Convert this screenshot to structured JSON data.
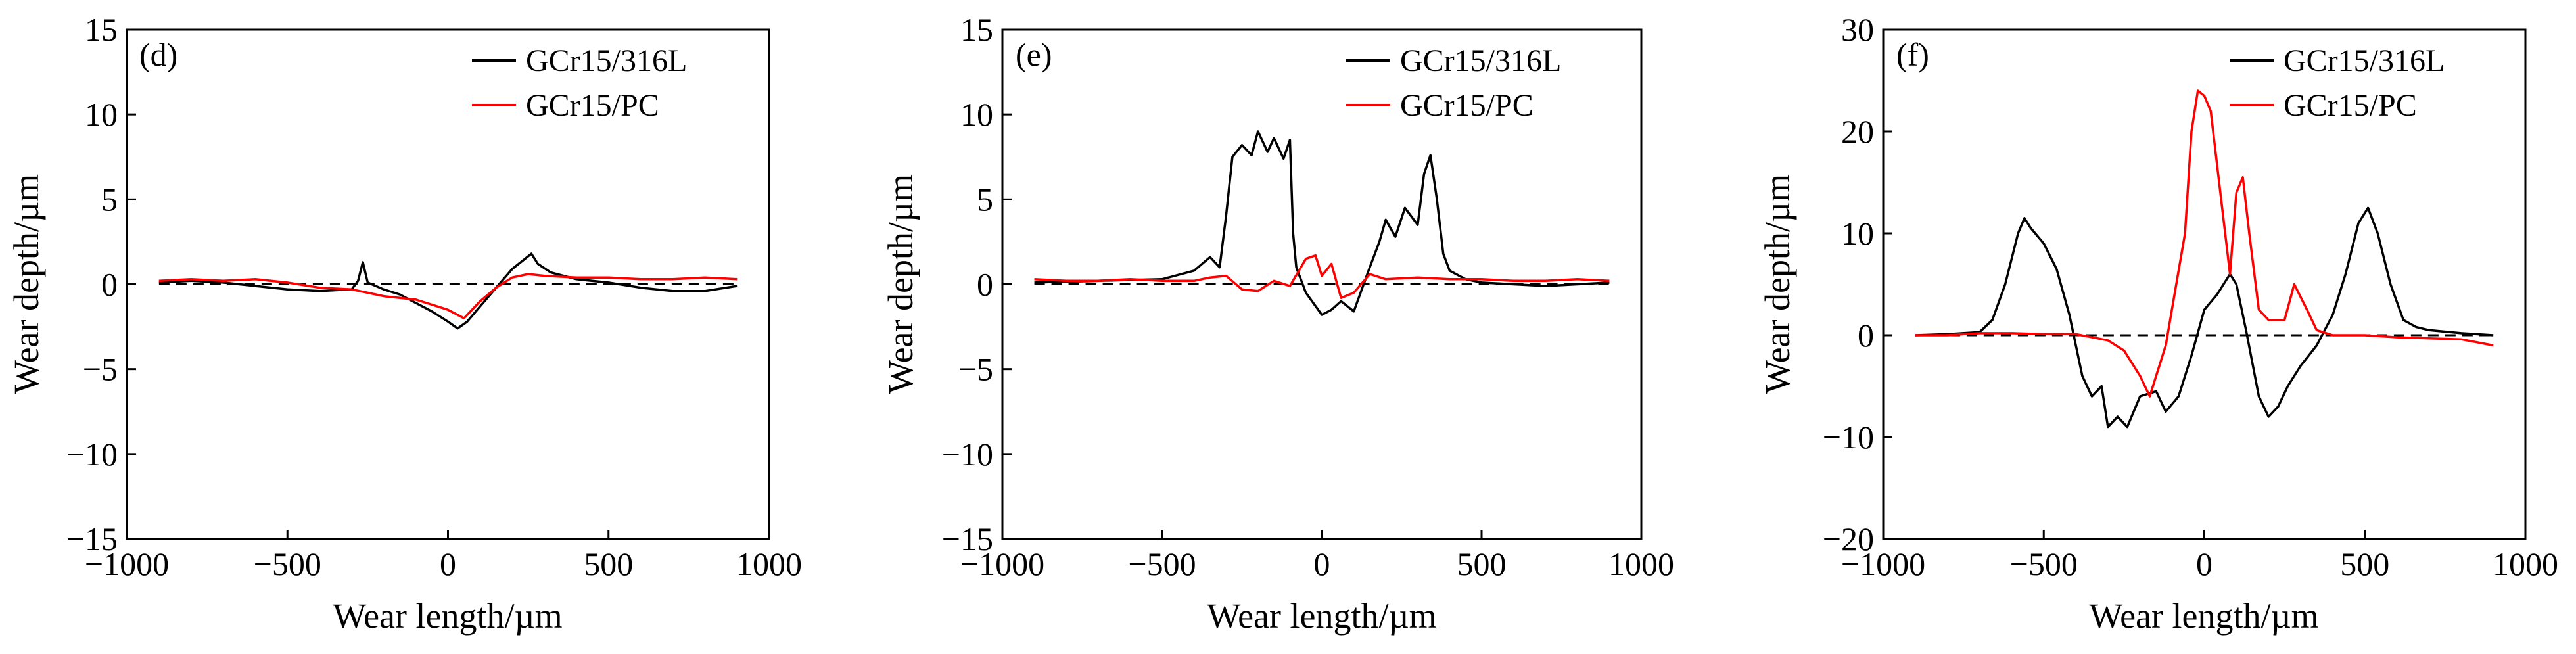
{
  "colors": {
    "series1": "#000000",
    "series2": "#ff0000",
    "axis": "#000000",
    "zero_line": "#000000"
  },
  "chart_data": [
    {
      "type": "line",
      "panel": "(d)",
      "xlabel": "Wear length/µm",
      "ylabel": "Wear depth/µm",
      "xlim": [
        -1000,
        1000
      ],
      "ylim": [
        -15,
        15
      ],
      "xticks": [
        -1000,
        -500,
        0,
        500,
        1000
      ],
      "yticks": [
        -15,
        -10,
        -5,
        0,
        5,
        10,
        15
      ],
      "xtick_labels": [
        "−1000",
        "−500",
        "0",
        "500",
        "1000"
      ],
      "ytick_labels": [
        "−15",
        "−10",
        "−5",
        "0",
        "5",
        "10",
        "15"
      ],
      "legend_position": "top-right",
      "zero_reference": "dashed line at 0",
      "series": [
        {
          "name": "GCr15/316L",
          "color": "#000000",
          "x": [
            -900,
            -800,
            -700,
            -600,
            -500,
            -400,
            -300,
            -280,
            -265,
            -250,
            -200,
            -150,
            -100,
            -50,
            0,
            30,
            60,
            100,
            150,
            200,
            240,
            260,
            280,
            320,
            400,
            500,
            600,
            700,
            800,
            900
          ],
          "y": [
            0.1,
            0.2,
            0.1,
            -0.1,
            -0.3,
            -0.4,
            -0.3,
            0.2,
            1.3,
            0.1,
            -0.3,
            -0.6,
            -1.1,
            -1.6,
            -2.2,
            -2.6,
            -2.2,
            -1.3,
            -0.2,
            0.9,
            1.5,
            1.8,
            1.2,
            0.7,
            0.3,
            0.1,
            -0.2,
            -0.4,
            -0.4,
            -0.1
          ]
        },
        {
          "name": "GCr15/PC",
          "color": "#ff0000",
          "x": [
            -900,
            -800,
            -700,
            -600,
            -500,
            -400,
            -300,
            -250,
            -200,
            -150,
            -100,
            -50,
            0,
            50,
            100,
            150,
            200,
            250,
            300,
            400,
            500,
            600,
            700,
            800,
            900
          ],
          "y": [
            0.2,
            0.3,
            0.2,
            0.3,
            0.1,
            -0.2,
            -0.3,
            -0.5,
            -0.7,
            -0.8,
            -0.9,
            -1.2,
            -1.5,
            -2.0,
            -1.0,
            -0.2,
            0.4,
            0.6,
            0.5,
            0.4,
            0.4,
            0.3,
            0.3,
            0.4,
            0.3
          ]
        }
      ]
    },
    {
      "type": "line",
      "panel": "(e)",
      "xlabel": "Wear length/µm",
      "ylabel": "Wear depth/µm",
      "xlim": [
        -1000,
        1000
      ],
      "ylim": [
        -15,
        15
      ],
      "xticks": [
        -1000,
        -500,
        0,
        500,
        1000
      ],
      "yticks": [
        -15,
        -10,
        -5,
        0,
        5,
        10,
        15
      ],
      "xtick_labels": [
        "−1000",
        "−500",
        "0",
        "500",
        "1000"
      ],
      "ytick_labels": [
        "−15",
        "−10",
        "−5",
        "0",
        "5",
        "10",
        "15"
      ],
      "legend_position": "top-right",
      "zero_reference": "dashed line at 0",
      "series": [
        {
          "name": "GCr15/316L",
          "color": "#000000",
          "x": [
            -900,
            -700,
            -500,
            -400,
            -350,
            -320,
            -300,
            -280,
            -250,
            -220,
            -200,
            -170,
            -150,
            -120,
            -100,
            -90,
            -80,
            -50,
            0,
            30,
            60,
            100,
            150,
            180,
            200,
            230,
            260,
            300,
            320,
            340,
            360,
            380,
            400,
            450,
            500,
            600,
            700,
            800,
            900
          ],
          "y": [
            0.1,
            0.2,
            0.3,
            0.8,
            1.6,
            1.0,
            4.0,
            7.5,
            8.2,
            7.6,
            9.0,
            7.8,
            8.6,
            7.4,
            8.5,
            3.0,
            1.0,
            -0.5,
            -1.8,
            -1.5,
            -1.0,
            -1.6,
            1.0,
            2.5,
            3.8,
            2.8,
            4.5,
            3.5,
            6.5,
            7.6,
            5.0,
            1.8,
            0.8,
            0.3,
            0.1,
            0.0,
            -0.1,
            0.0,
            0.1
          ]
        },
        {
          "name": "GCr15/PC",
          "color": "#ff0000",
          "x": [
            -900,
            -800,
            -700,
            -600,
            -500,
            -400,
            -350,
            -300,
            -250,
            -200,
            -150,
            -100,
            -50,
            -20,
            0,
            30,
            60,
            100,
            150,
            200,
            300,
            400,
            500,
            600,
            700,
            800,
            900
          ],
          "y": [
            0.3,
            0.2,
            0.2,
            0.3,
            0.2,
            0.2,
            0.4,
            0.5,
            -0.3,
            -0.4,
            0.2,
            -0.1,
            1.5,
            1.7,
            0.5,
            1.2,
            -0.8,
            -0.5,
            0.6,
            0.3,
            0.4,
            0.3,
            0.3,
            0.2,
            0.2,
            0.3,
            0.2
          ]
        }
      ]
    },
    {
      "type": "line",
      "panel": "(f)",
      "xlabel": "Wear length/µm",
      "ylabel": "Wear depth/µm",
      "xlim": [
        -1000,
        1000
      ],
      "ylim": [
        -20,
        30
      ],
      "xticks": [
        -1000,
        -500,
        0,
        500,
        1000
      ],
      "yticks": [
        -20,
        -10,
        0,
        10,
        20,
        30
      ],
      "xtick_labels": [
        "−1000",
        "−500",
        "0",
        "500",
        "1000"
      ],
      "ytick_labels": [
        "−20",
        "−10",
        "0",
        "10",
        "20",
        "30"
      ],
      "legend_position": "top-right",
      "zero_reference": "dashed line at 0",
      "series": [
        {
          "name": "GCr15/316L",
          "color": "#000000",
          "x": [
            -900,
            -800,
            -700,
            -660,
            -620,
            -580,
            -560,
            -540,
            -500,
            -460,
            -420,
            -380,
            -350,
            -320,
            -300,
            -270,
            -240,
            -200,
            -150,
            -120,
            -80,
            -40,
            0,
            40,
            80,
            100,
            130,
            170,
            200,
            230,
            260,
            300,
            350,
            400,
            440,
            480,
            510,
            540,
            580,
            620,
            660,
            700,
            800,
            900
          ],
          "y": [
            0.0,
            0.1,
            0.3,
            1.5,
            5.0,
            10.0,
            11.5,
            10.5,
            9.0,
            6.5,
            2.0,
            -4.0,
            -6.0,
            -5.0,
            -9.0,
            -8.0,
            -9.0,
            -6.0,
            -5.5,
            -7.5,
            -6.0,
            -2.0,
            2.5,
            4.0,
            6.0,
            5.0,
            0.5,
            -6.0,
            -8.0,
            -7.0,
            -5.0,
            -3.0,
            -1.0,
            2.0,
            6.0,
            11.0,
            12.5,
            10.0,
            5.0,
            1.5,
            0.8,
            0.5,
            0.2,
            0.0
          ]
        },
        {
          "name": "GCr15/PC",
          "color": "#ff0000",
          "x": [
            -900,
            -800,
            -700,
            -600,
            -500,
            -400,
            -300,
            -250,
            -200,
            -170,
            -150,
            -120,
            -90,
            -60,
            -40,
            -20,
            0,
            20,
            50,
            80,
            100,
            120,
            140,
            170,
            200,
            250,
            280,
            320,
            350,
            400,
            500,
            600,
            700,
            800,
            900
          ],
          "y": [
            0.0,
            0.0,
            0.2,
            0.2,
            0.1,
            0.1,
            -0.5,
            -1.5,
            -4.0,
            -6.0,
            -4.0,
            -1.0,
            4.5,
            10.0,
            20.0,
            24.0,
            23.5,
            22.0,
            14.0,
            6.0,
            14.0,
            15.5,
            10.0,
            2.5,
            1.5,
            1.5,
            5.0,
            2.5,
            0.5,
            0.0,
            0.0,
            -0.2,
            -0.3,
            -0.4,
            -1.0
          ]
        }
      ]
    }
  ]
}
